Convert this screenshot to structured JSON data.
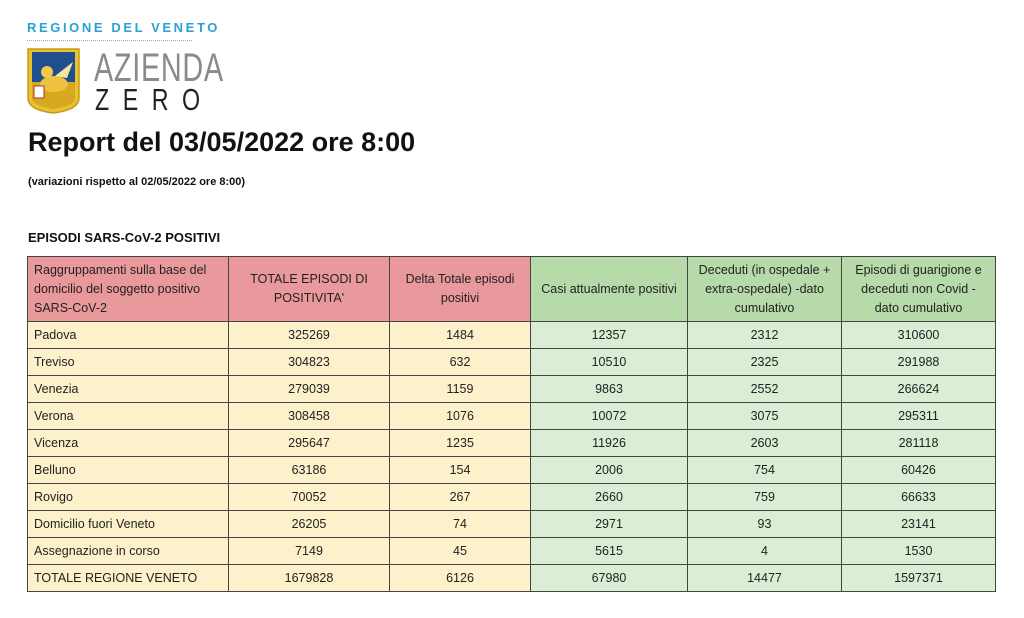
{
  "header": {
    "region": "REGIONE DEL VENETO",
    "logo_text_line1": "AZIENDA",
    "logo_text_line2": "ZERO",
    "title": "Report del 03/05/2022 ore 8:00",
    "subtitle": "(variazioni rispetto al 02/05/2022 ore 8:00)"
  },
  "section_title": "EPISODI SARS-CoV-2 POSITIVI",
  "colors": {
    "region_blue": "#2aa0d4",
    "header_pink": "#e9989b",
    "header_green": "#b6daa9",
    "cell_yellow": "#fdf1cc",
    "cell_green": "#dbeed5"
  },
  "table": {
    "columns": [
      "Raggruppamenti sulla base del domicilio del soggetto positivo SARS-CoV-2",
      "TOTALE EPISODI DI POSITIVITA'",
      "Delta Totale episodi positivi",
      "Casi attualmente positivi",
      "Deceduti (in ospedale + extra-ospedale) -dato cumulativo",
      "Episodi di guarigione e deceduti non Covid - dato cumulativo"
    ],
    "rows": [
      [
        "Padova",
        "325269",
        "1484",
        "12357",
        "2312",
        "310600"
      ],
      [
        "Treviso",
        "304823",
        "632",
        "10510",
        "2325",
        "291988"
      ],
      [
        "Venezia",
        "279039",
        "1159",
        "9863",
        "2552",
        "266624"
      ],
      [
        "Verona",
        "308458",
        "1076",
        "10072",
        "3075",
        "295311"
      ],
      [
        "Vicenza",
        "295647",
        "1235",
        "11926",
        "2603",
        "281118"
      ],
      [
        "Belluno",
        "63186",
        "154",
        "2006",
        "754",
        "60426"
      ],
      [
        "Rovigo",
        "70052",
        "267",
        "2660",
        "759",
        "66633"
      ],
      [
        "Domicilio fuori Veneto",
        "26205",
        "74",
        "2971",
        "93",
        "23141"
      ],
      [
        "Assegnazione in corso",
        "7149",
        "45",
        "5615",
        "4",
        "1530"
      ],
      [
        "TOTALE REGIONE VENETO",
        "1679828",
        "6126",
        "67980",
        "14477",
        "1597371"
      ]
    ]
  }
}
